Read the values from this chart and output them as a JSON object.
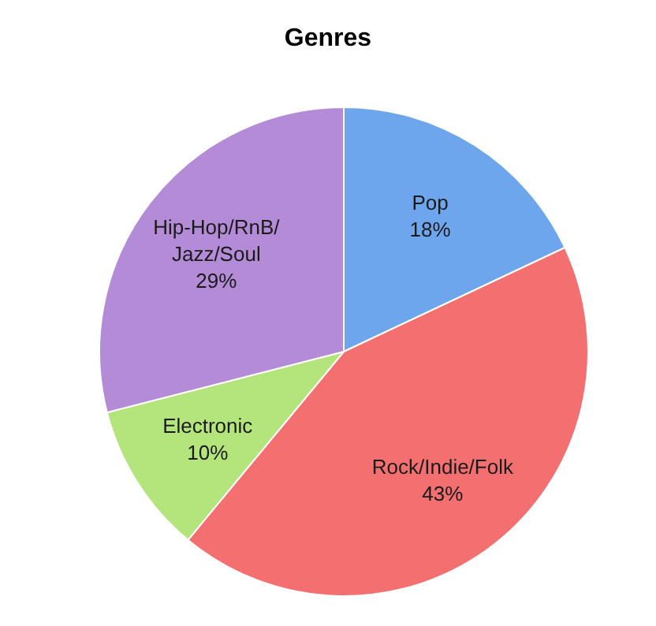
{
  "chart_data": {
    "type": "pie",
    "title": "Genres",
    "categories": [
      "Pop",
      "Rock/Indie/Folk",
      "Electronic",
      "Hip-Hop/RnB/Jazz/Soul"
    ],
    "values": [
      18,
      43,
      10,
      29
    ],
    "value_labels": [
      "18%",
      "43%",
      "10%",
      "29%"
    ],
    "colors": [
      "#6ea6ee",
      "#f47070",
      "#b4e57c",
      "#b38bd6"
    ]
  }
}
